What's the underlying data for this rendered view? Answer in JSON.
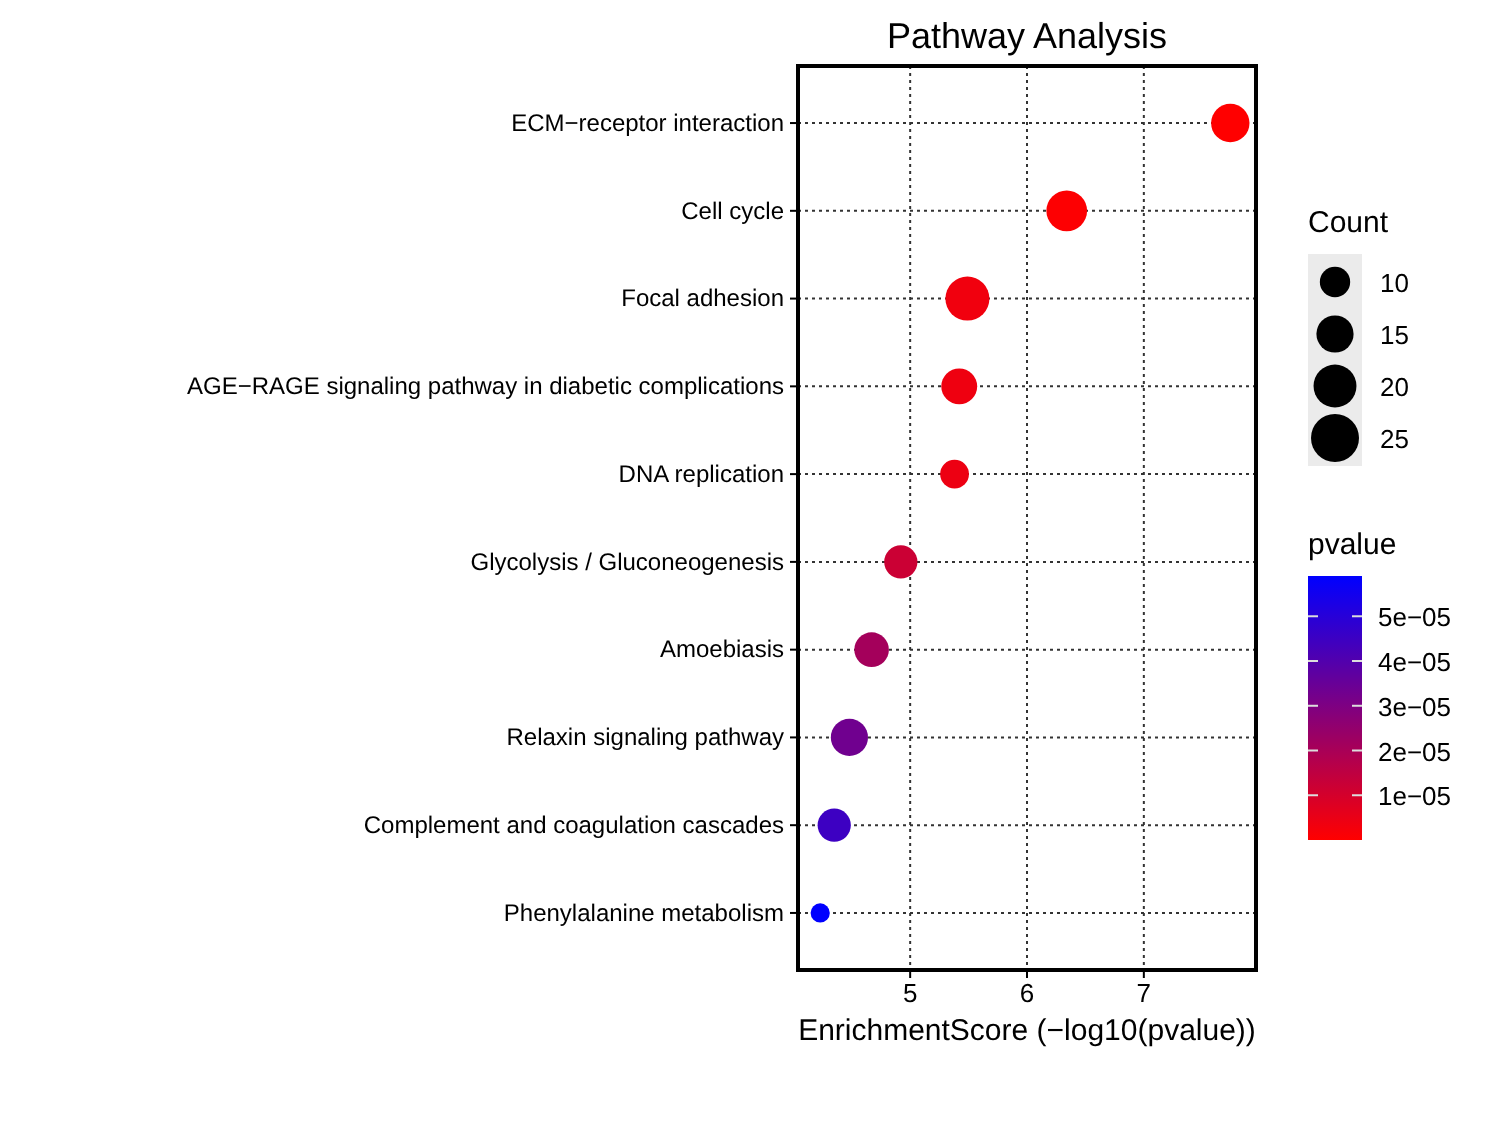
{
  "chart_data": {
    "type": "bubble",
    "title": "Pathway Analysis",
    "xlabel": "EnrichmentScore (−log10(pvalue))",
    "legend_title": "Count",
    "clabel": "pvalue",
    "categories": [
      "ECM−receptor interaction",
      "Cell cycle",
      "Focal adhesion",
      "AGE−RAGE signaling pathway in diabetic complications",
      "DNA replication",
      "Glycolysis / Gluconeogenesis",
      "Amoebiasis",
      "Relaxin signaling pathway",
      "Complement and coagulation cascades",
      "Phenylalanine metabolism"
    ],
    "values": [
      7.74,
      6.34,
      5.49,
      5.42,
      5.38,
      4.92,
      4.67,
      4.48,
      4.35,
      4.23
    ],
    "sizes": [
      16,
      18,
      21,
      14,
      9,
      12,
      13,
      15,
      12,
      4
    ],
    "cvalues": [
      2e-08,
      4.6e-07,
      3.2e-06,
      3.8e-06,
      4.2e-06,
      1.2e-05,
      2.1e-05,
      3.3e-05,
      4.5e-05,
      5.9e-05
    ],
    "orientation": "horizontal",
    "size_legend": [
      10,
      15,
      20,
      25
    ],
    "clim": [
      0,
      5.9e-05
    ],
    "cticks": [
      {
        "value": 1e-05,
        "label": "1e−05"
      },
      {
        "value": 2e-05,
        "label": "2e−05"
      },
      {
        "value": 3e-05,
        "label": "3e−05"
      },
      {
        "value": 4e-05,
        "label": "4e−05"
      },
      {
        "value": 5e-05,
        "label": "5e−05"
      }
    ],
    "xlim": [
      4.04,
      7.96
    ],
    "xticks": [
      5,
      6,
      7
    ],
    "grid": true
  }
}
